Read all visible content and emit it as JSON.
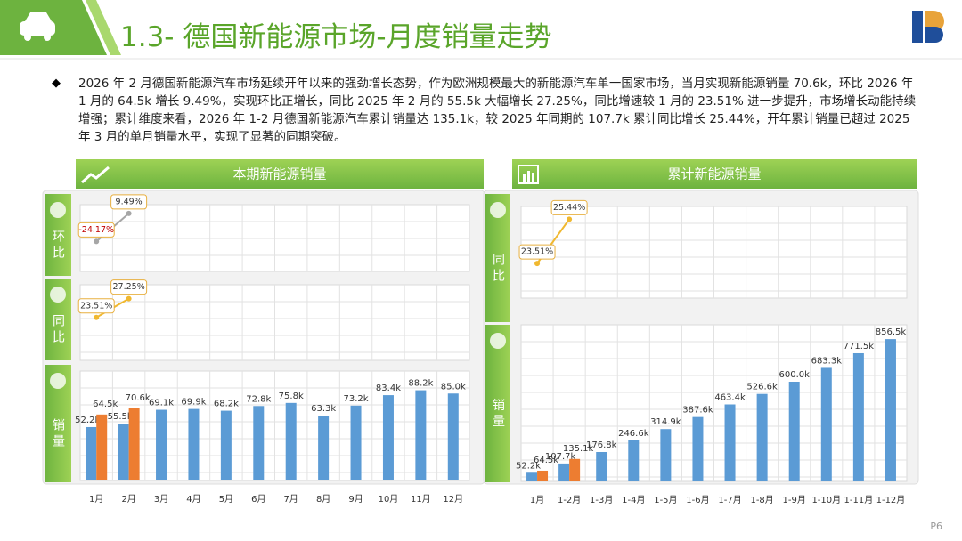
{
  "header": {
    "title": "1.3- 德国新能源市场-月度销量走势"
  },
  "body": {
    "paragraph": "2026 年 2 月德国新能源汽车市场延续开年以来的强劲增长态势，作为欧洲规模最大的新能源汽车单一国家市场，当月实现新能源销量 70.6k，环比 2026 年 1 月的 64.5k 增长 9.49%，实现环比正增长，同比 2025 年 2 月的 55.5k 大幅增长 27.25%，同比增速较 1 月的 23.51% 进一步提升，市场增长动能持续增强；累计维度来看，2026 年 1-2 月德国新能源汽车累计销量达 135.1k，较 2025 年同期的 107.7k 累计同比增长 25.44%，开年累计销量已超过 2025 年 3 月的单月销量水平，实现了显著的同期突破。"
  },
  "page_number": "P6",
  "panels": [
    {
      "title": "本期新能源销量"
    },
    {
      "title": "累计新能源销量"
    }
  ],
  "chart_data": [
    {
      "type": "line",
      "label": "环比",
      "series": [
        {
          "color": "#a6a6a6",
          "negative_color": "#c00000",
          "values": [
            -24.17,
            9.49
          ],
          "value_labels": [
            "-24.17%",
            "9.49%"
          ]
        }
      ],
      "ylim": [
        -60,
        20
      ]
    },
    {
      "type": "line",
      "label": "同比",
      "series": [
        {
          "color": "#f0b830",
          "values": [
            23.51,
            27.25
          ],
          "value_labels": [
            "23.51%",
            "27.25%"
          ]
        }
      ],
      "ylim": [
        15,
        30
      ]
    },
    {
      "type": "bar",
      "label": "销量",
      "categories": [
        "1月",
        "2月",
        "3月",
        "4月",
        "5月",
        "6月",
        "7月",
        "8月",
        "9月",
        "10月",
        "11月",
        "12月"
      ],
      "series": [
        {
          "color": "#5b9bd5",
          "values": [
            52.2,
            55.5,
            69.1,
            69.9,
            68.2,
            72.8,
            75.8,
            63.3,
            73.2,
            83.4,
            88.2,
            85.0
          ],
          "value_labels": [
            "52.2k",
            "55.5k",
            "69.1k",
            "69.9k",
            "68.2k",
            "72.8k",
            "75.8k",
            "63.3k",
            "73.2k",
            "83.4k",
            "88.2k",
            "85.0k"
          ]
        },
        {
          "color": "#ed7d31",
          "values": [
            64.5,
            70.6,
            null,
            null,
            null,
            null,
            null,
            null,
            null,
            null,
            null,
            null
          ],
          "value_labels": [
            "64.5k",
            "70.6k",
            null,
            null,
            null,
            null,
            null,
            null,
            null,
            null,
            null,
            null
          ]
        }
      ],
      "ylim": [
        0,
        100
      ]
    },
    {
      "type": "line",
      "label": "同比",
      "series": [
        {
          "color": "#f0b830",
          "values": [
            23.51,
            25.44
          ],
          "value_labels": [
            "23.51%",
            "25.44%"
          ]
        }
      ],
      "ylim": [
        22,
        26
      ]
    },
    {
      "type": "bar",
      "label": "销量",
      "categories": [
        "1月",
        "1-2月",
        "1-3月",
        "1-4月",
        "1-5月",
        "1-6月",
        "1-7月",
        "1-8月",
        "1-9月",
        "1-10月",
        "1-11月",
        "1-12月"
      ],
      "series": [
        {
          "color": "#5b9bd5",
          "values": [
            52.2,
            107.7,
            176.8,
            246.6,
            314.9,
            387.6,
            463.4,
            526.6,
            600.0,
            683.3,
            771.5,
            856.5
          ],
          "value_labels": [
            "52.2k",
            "107.7k",
            "176.8k",
            "246.6k",
            "314.9k",
            "387.6k",
            "463.4k",
            "526.6k",
            "600.0k",
            "683.3k",
            "771.5k",
            "856.5k"
          ]
        },
        {
          "color": "#ed7d31",
          "values": [
            64.5,
            135.1,
            null,
            null,
            null,
            null,
            null,
            null,
            null,
            null,
            null,
            null
          ],
          "value_labels": [
            "64.5k",
            "135.1k",
            null,
            null,
            null,
            null,
            null,
            null,
            null,
            null,
            null,
            null
          ]
        }
      ],
      "ylim": [
        0,
        900
      ]
    }
  ]
}
